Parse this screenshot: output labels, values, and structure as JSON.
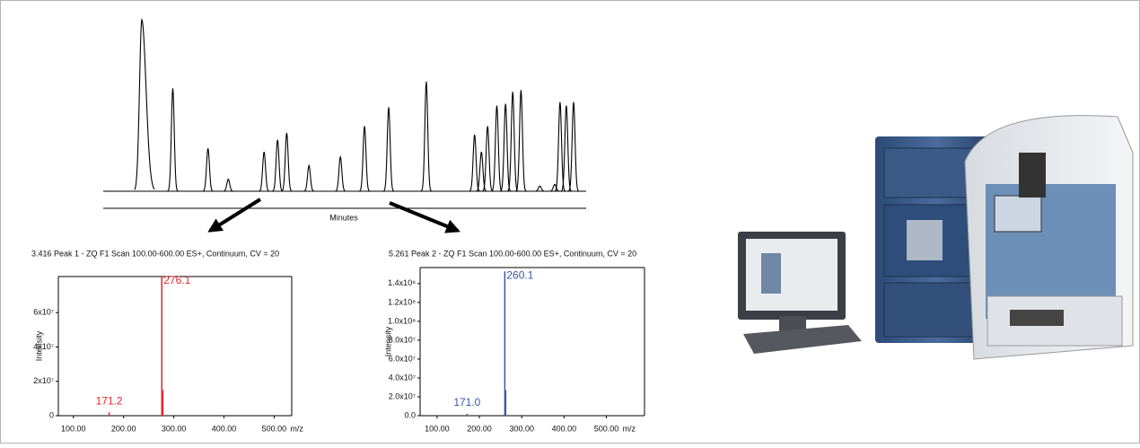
{
  "chart_data": [
    {
      "type": "chromatogram",
      "x_label": "Minutes",
      "color": "#000000",
      "xlim": [
        0,
        100
      ],
      "ylim": [
        0,
        100
      ],
      "x": [
        8.0,
        14.4,
        21.7,
        25.9,
        33.3,
        36.1,
        38.0,
        42.6,
        49.1,
        54.1,
        59.1,
        66.9,
        76.9,
        78.3,
        79.6,
        81.5,
        83.3,
        84.8,
        86.5,
        90.4,
        93.5,
        94.6,
        95.9,
        97.4
      ],
      "values": [
        100,
        60,
        25,
        7,
        23,
        30,
        34,
        15,
        20,
        38,
        49,
        64,
        33,
        23,
        38,
        50,
        51,
        58,
        59,
        3,
        4,
        52,
        50,
        52
      ]
    },
    {
      "type": "spectrum",
      "title": "3.416 Peak 1 - ZQ F1 Scan 100.00-600.00 ES+, Continuum, CV = 20",
      "y_label": "Intensity",
      "x_label": "m/z",
      "color": "#e8262b",
      "xlim": [
        70,
        535
      ],
      "ylim": [
        0,
        81000000
      ],
      "xticks": [
        {
          "value": 100,
          "label": "100.00"
        },
        {
          "value": 200,
          "label": "200.00"
        },
        {
          "value": 300,
          "label": "300.00"
        },
        {
          "value": 400,
          "label": "400.00"
        },
        {
          "value": 500,
          "label": "500.00"
        }
      ],
      "yticks": [
        0,
        {
          "value": 20000000,
          "label": "2x10⁷"
        },
        {
          "value": 40000000,
          "label": "4x10⁷"
        },
        {
          "value": 60000000,
          "label": "6x10⁷"
        }
      ],
      "x": [
        171.2,
        276.1,
        278.1
      ],
      "values": [
        2000000,
        81000000,
        15000000
      ]
    },
    {
      "type": "spectrum",
      "title": "5.261 Peak 2 - ZQ F1 Scan 100.00-600.00 ES+, Continuum, CV = 20",
      "y_label": "Intensity",
      "x_label": "m/z",
      "color": "#3a56a5",
      "xlim": [
        60,
        590
      ],
      "ylim": [
        0,
        157000000
      ],
      "xticks": [
        {
          "value": 100,
          "label": "100.00"
        },
        {
          "value": 200,
          "label": "200.00"
        },
        {
          "value": 300,
          "label": "300.00"
        },
        {
          "value": 400,
          "label": "400.00"
        },
        {
          "value": 500,
          "label": "500.00"
        }
      ],
      "yticks": [
        {
          "value": 0,
          "label": "0.0"
        },
        {
          "value": 20000000,
          "label": "2.0x10⁷"
        },
        {
          "value": 40000000,
          "label": "4.0x10⁷"
        },
        {
          "value": 60000000,
          "label": "6.0x10⁷"
        },
        {
          "value": 80000000,
          "label": "8.0x10⁷"
        },
        {
          "value": 100000000,
          "label": "1.0x10⁸"
        },
        {
          "value": 120000000,
          "label": "1.2x10⁸"
        },
        {
          "value": 140000000,
          "label": "1.4x10⁸"
        }
      ],
      "x": [
        171.0,
        260.1,
        262.1
      ],
      "x_labels": [
        "171.0",
        "260.1",
        null
      ],
      "values": [
        2000000,
        153000000,
        27000000
      ]
    }
  ]
}
